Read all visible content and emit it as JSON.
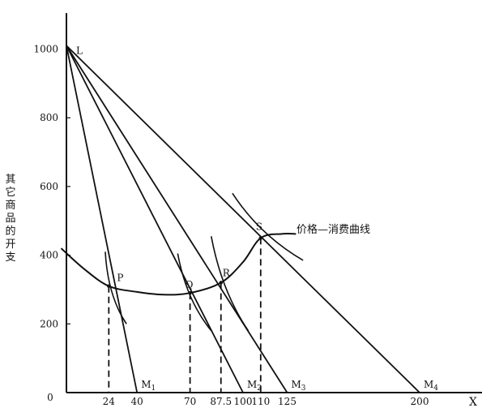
{
  "chart_data": {
    "type": "line",
    "title": "",
    "xlabel": "X",
    "ylabel": "其它商品的开支",
    "origin_label": "0",
    "xlim": [
      0,
      235
    ],
    "ylim": [
      0,
      1100
    ],
    "x_ticks": [
      24,
      40,
      70,
      87.5,
      100,
      110,
      125,
      200
    ],
    "x_tick_labels": [
      "24",
      "40",
      "70",
      "87.5",
      "100",
      "110",
      "125",
      "200"
    ],
    "y_ticks": [
      200,
      400,
      600,
      800,
      1000
    ],
    "y_tick_labels": [
      "200",
      "400",
      "600",
      "800",
      "1000"
    ],
    "intercept_point": {
      "label": "L",
      "x": 0,
      "y": 1010
    },
    "budget_lines": [
      {
        "name": "M₁",
        "x_intercept": 40
      },
      {
        "name": "M₂",
        "x_intercept": 100
      },
      {
        "name": "M₃",
        "x_intercept": 125
      },
      {
        "name": "M₄",
        "x_intercept": 200
      }
    ],
    "points": [
      {
        "label": "P",
        "x": 24,
        "y": 310
      },
      {
        "label": "Q",
        "x": 70,
        "y": 290
      },
      {
        "label": "R",
        "x": 87.5,
        "y": 320
      },
      {
        "label": "S",
        "x": 110,
        "y": 450
      }
    ],
    "curve_label": "价格—消费曲线",
    "price_consumption_curve": [
      {
        "x": -3,
        "y": 420
      },
      {
        "x": 10,
        "y": 360
      },
      {
        "x": 24,
        "y": 310
      },
      {
        "x": 40,
        "y": 293
      },
      {
        "x": 55,
        "y": 285
      },
      {
        "x": 70,
        "y": 290
      },
      {
        "x": 87.5,
        "y": 320
      },
      {
        "x": 100,
        "y": 380
      },
      {
        "x": 110,
        "y": 450
      },
      {
        "x": 122,
        "y": 462
      },
      {
        "x": 130,
        "y": 462
      }
    ],
    "indifference_curves": [
      {
        "point": "P",
        "from": {
          "x": 22,
          "y": 410
        },
        "to": {
          "x": 34,
          "y": 200
        }
      },
      {
        "point": "Q",
        "from": {
          "x": 63,
          "y": 405
        },
        "to": {
          "x": 82,
          "y": 180
        }
      },
      {
        "point": "R",
        "from": {
          "x": 82,
          "y": 455
        },
        "to": {
          "x": 103,
          "y": 180
        }
      },
      {
        "point": "S",
        "from": {
          "x": 94,
          "y": 580
        },
        "to": {
          "x": 134,
          "y": 385
        }
      }
    ]
  }
}
